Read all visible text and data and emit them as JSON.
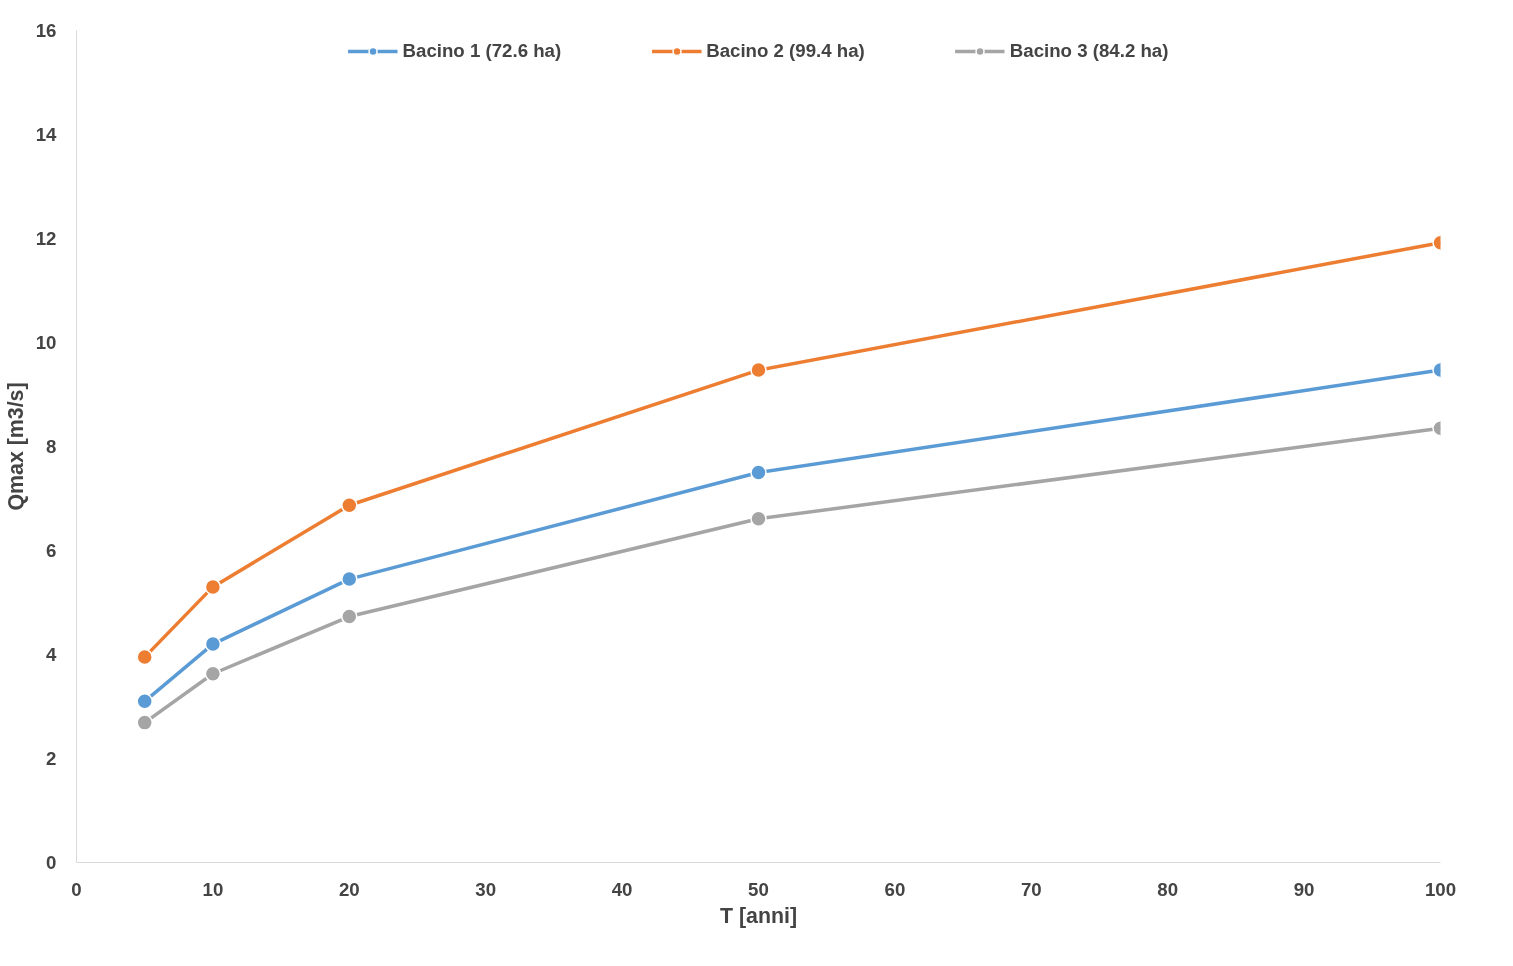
{
  "chart_data": {
    "type": "line",
    "xlabel": "T [anni]",
    "ylabel": "Qmax [m3/s]",
    "x": [
      5,
      10,
      20,
      50,
      100
    ],
    "series": [
      {
        "name": "Bacino 1 (72.6 ha)",
        "color": "#5b9bd5",
        "values": [
          3.1,
          4.2,
          5.45,
          7.5,
          9.47
        ]
      },
      {
        "name": "Bacino 2 (99.4 ha)",
        "color": "#ed7d31",
        "values": [
          3.95,
          5.3,
          6.87,
          9.47,
          11.92
        ]
      },
      {
        "name": "Bacino 3 (84.2 ha)",
        "color": "#a5a5a5",
        "values": [
          2.69,
          3.63,
          4.73,
          6.61,
          8.35
        ]
      }
    ],
    "xlim": [
      0,
      100
    ],
    "xticks": [
      0,
      10,
      20,
      30,
      40,
      50,
      60,
      70,
      80,
      90,
      100
    ],
    "ylim": [
      0,
      16
    ],
    "yticks": [
      0,
      2,
      4,
      6,
      8,
      10,
      12,
      14,
      16
    ],
    "grid": false,
    "legend": "top",
    "marker": "circle",
    "line_style": "solid"
  }
}
